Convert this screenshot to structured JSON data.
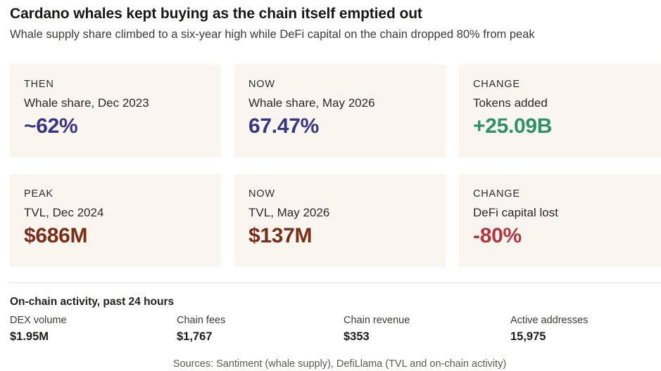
{
  "header": {
    "title": "Cardano whales kept buying as the chain itself emptied out",
    "subtitle": "Whale supply share climbed to a six-year high while DeFi capital on the chain dropped 80% from peak"
  },
  "cards": [
    {
      "label": "THEN",
      "sub": "Whale share, Dec 2023",
      "value": "~62%",
      "value_color": "#3b3386"
    },
    {
      "label": "NOW",
      "sub": "Whale share, May 2026",
      "value": "67.47%",
      "value_color": "#3b3386"
    },
    {
      "label": "CHANGE",
      "sub": "Tokens added",
      "value": "+25.09B",
      "value_color": "#2e9266"
    },
    {
      "label": "PEAK",
      "sub": "TVL, Dec 2024",
      "value": "$686M",
      "value_color": "#7a2e17"
    },
    {
      "label": "NOW",
      "sub": "TVL, May 2026",
      "value": "$137M",
      "value_color": "#7a2e17"
    },
    {
      "label": "CHANGE",
      "sub": "DeFi capital lost",
      "value": "-80%",
      "value_color": "#b3353f"
    }
  ],
  "activity": {
    "title": "On-chain activity, past 24 hours",
    "stats": [
      {
        "label": "DEX volume",
        "value": "$1.95M"
      },
      {
        "label": "Chain fees",
        "value": "$1,767"
      },
      {
        "label": "Chain revenue",
        "value": "$353"
      },
      {
        "label": "Active addresses",
        "value": "15,975"
      }
    ]
  },
  "sources": "Sources: Santiment (whale supply), DefiLlama (TVL and on-chain activity)"
}
